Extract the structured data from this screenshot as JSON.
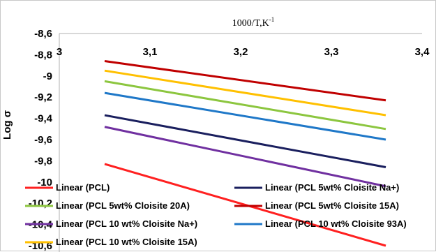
{
  "chart_data": {
    "type": "line",
    "xlabel": "1000/T,K",
    "xlabel_sup": "-1",
    "ylabel": "Log σ",
    "xlim": [
      3,
      3.4
    ],
    "ylim": [
      -10.6,
      -8.6
    ],
    "xticks": [
      "3",
      "3,1",
      "3,2",
      "3,3",
      "3,4"
    ],
    "yticks": [
      "-8,6",
      "-8,8",
      "-9",
      "-9,2",
      "-9,4",
      "-9,6",
      "-9,8",
      "-10",
      "-10,2",
      "-10,4",
      "-10,6"
    ],
    "x_axis_position": "top",
    "grid": false,
    "legend_placement": "bottom",
    "series": [
      {
        "name": "Linear (PCL)",
        "color": "#ff2020",
        "x": [
          3.05,
          3.36
        ],
        "y": [
          -9.83,
          -10.6
        ]
      },
      {
        "name": "Linear (PCL 5wt% Cloisite Na+)",
        "color": "#1a1f5e",
        "x": [
          3.05,
          3.36
        ],
        "y": [
          -9.37,
          -9.86
        ]
      },
      {
        "name": "Linear (PCL 5wt% Cloisite 20A)",
        "color": "#8cc63f",
        "x": [
          3.05,
          3.36
        ],
        "y": [
          -9.05,
          -9.5
        ]
      },
      {
        "name": "Linear (PCL 5wt% Cloisite 15A)",
        "color": "#c00000",
        "x": [
          3.05,
          3.36
        ],
        "y": [
          -8.86,
          -9.23
        ]
      },
      {
        "name": "Linear (PCL 10 wt% Cloisite Na+)",
        "color": "#7030a0",
        "x": [
          3.05,
          3.36
        ],
        "y": [
          -9.48,
          -10.04
        ]
      },
      {
        "name": "Linear (PCL 10 wt% Cloisite 93A)",
        "color": "#1f78c8",
        "x": [
          3.05,
          3.36
        ],
        "y": [
          -9.16,
          -9.6
        ]
      },
      {
        "name": "Linear (PCL 10 wt% Cloisite 15A)",
        "color": "#ffc000",
        "x": [
          3.05,
          3.36
        ],
        "y": [
          -8.95,
          -9.37
        ]
      }
    ]
  }
}
